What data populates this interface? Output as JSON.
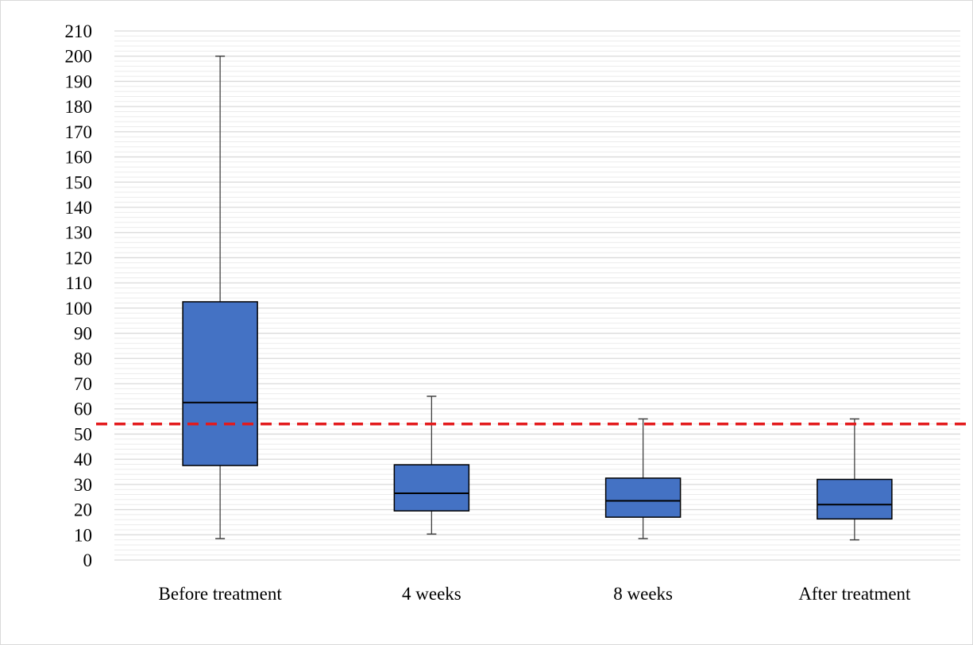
{
  "chart_data": {
    "type": "box",
    "title": "",
    "xlabel": "",
    "ylabel": "",
    "ylim": [
      0,
      210
    ],
    "y_ticks": [
      0,
      10,
      20,
      30,
      40,
      50,
      60,
      70,
      80,
      90,
      100,
      110,
      120,
      130,
      140,
      150,
      160,
      170,
      180,
      190,
      200,
      210
    ],
    "minor_grid_step": 2,
    "grid": true,
    "categories": [
      "Before treatment",
      "4 weeks",
      "8 weeks",
      "After treatment"
    ],
    "boxes": [
      {
        "category": "Before treatment",
        "min": 8.5,
        "q1": 37.5,
        "median": 62.5,
        "q3": 102.5,
        "max": 200
      },
      {
        "category": "4 weeks",
        "min": 10.3,
        "q1": 19.5,
        "median": 26.5,
        "q3": 37.8,
        "max": 65
      },
      {
        "category": "8 weeks",
        "min": 8.5,
        "q1": 17,
        "median": 23.5,
        "q3": 32.5,
        "max": 56
      },
      {
        "category": "After treatment",
        "min": 8,
        "q1": 16.3,
        "median": 22,
        "q3": 32,
        "max": 56
      }
    ],
    "reference_line": {
      "value": 54,
      "style": "dashed",
      "color": "#e31a1c"
    },
    "colors": {
      "box_fill": "#4472c4",
      "box_stroke": "#000000",
      "whisker": "#404040",
      "grid": "#d9d9d9"
    }
  }
}
